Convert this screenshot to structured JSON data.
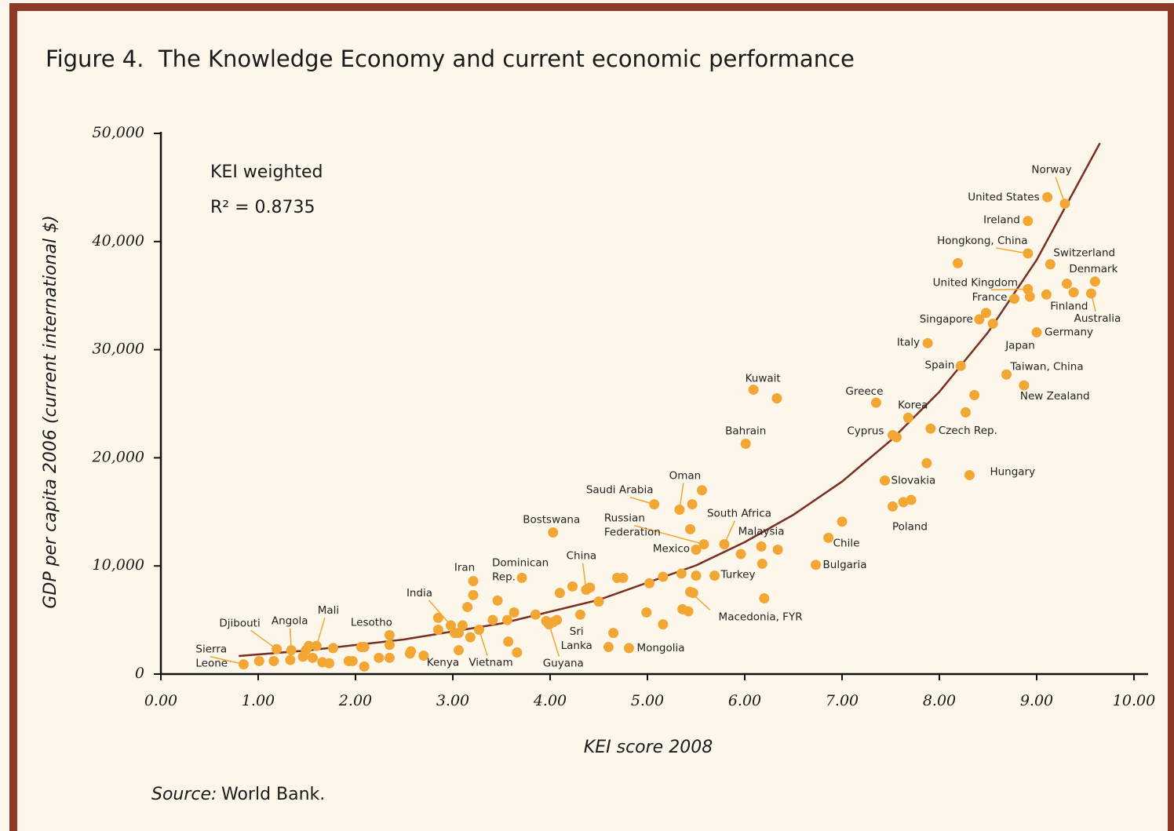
{
  "chart_data": {
    "type": "scatter",
    "title": "Figure 4.  The Knowledge Economy and current economic performance",
    "annotations": [
      "KEI weighted",
      "R² = 0.8735"
    ],
    "x_label": "KEI score 2008",
    "y_label": "GDP per capita 2006 (current international $)",
    "source_prefix": "Source:",
    "source": "World Bank.",
    "color": "#f2a633",
    "xlim": [
      0,
      10.15
    ],
    "ylim": [
      0,
      50000
    ],
    "xticks": [
      {
        "value": 0,
        "label": "0.00"
      },
      {
        "value": 1,
        "label": "1.00"
      },
      {
        "value": 2,
        "label": "2.00"
      },
      {
        "value": 3,
        "label": "3.00"
      },
      {
        "value": 4,
        "label": "4.00"
      },
      {
        "value": 5,
        "label": "5.00"
      },
      {
        "value": 6,
        "label": "6.00"
      },
      {
        "value": 7,
        "label": "7.00"
      },
      {
        "value": 8,
        "label": "8.00"
      },
      {
        "value": 9,
        "label": "9.00"
      },
      {
        "value": 10,
        "label": "10.00"
      }
    ],
    "yticks": [
      0,
      {
        "value": 10000,
        "label": "10,000"
      },
      {
        "value": 20000,
        "label": "20,000"
      },
      {
        "value": 30000,
        "label": "30,000"
      },
      {
        "value": 40000,
        "label": "40,000"
      },
      {
        "value": 50000,
        "label": "50,000"
      }
    ],
    "x": [
      9.29,
      9.11,
      8.91,
      8.91,
      9.14,
      9.6,
      8.91,
      8.77,
      9.1,
      9.56,
      8.41,
      8.55,
      9.0,
      7.88,
      8.22,
      8.69,
      8.87,
      7.35,
      7.68,
      7.52,
      7.91,
      8.31,
      7.44,
      7.52,
      6.09,
      6.01,
      5.33,
      5.07,
      5.79,
      5.58,
      5.5,
      6.17,
      6.86,
      6.73,
      5.69,
      5.44,
      4.81,
      4.03,
      4.37,
      3.71,
      3.21,
      2.98,
      4.03,
      3.99,
      3.27,
      3.06,
      2.35,
      1.6,
      1.34,
      1.19,
      0.85,
      8.19,
      8.93,
      9.38,
      9.31,
      8.48,
      8.36,
      8.27,
      7.56,
      7.87,
      7.63,
      7.71,
      6.33,
      5.56,
      5.46,
      5.44,
      6.34,
      5.96,
      6.18,
      7.0,
      5.47,
      5.35,
      5.5,
      5.16,
      5.02,
      4.99,
      5.16,
      5.36,
      5.42,
      6.2,
      4.6,
      4.65,
      4.41,
      4.23,
      4.1,
      4.69,
      4.75,
      4.5,
      4.31,
      3.21,
      3.15,
      2.85,
      2.85,
      3.02,
      3.06,
      3.1,
      3.46,
      3.41,
      3.56,
      3.63,
      3.85,
      3.96,
      4.07,
      3.18,
      3.57,
      3.66,
      2.7,
      2.57,
      2.56,
      2.35,
      2.35,
      2.24,
      2.06,
      2.09,
      2.09,
      1.93,
      1.97,
      1.52,
      1.49,
      1.46,
      1.56,
      1.66,
      1.73,
      1.77,
      1.33,
      1.16,
      1.01
    ],
    "values": [
      43500,
      44100,
      41900,
      38900,
      37900,
      36300,
      35600,
      34700,
      35100,
      35200,
      32800,
      32400,
      31600,
      30600,
      28500,
      27700,
      26700,
      25100,
      23700,
      22100,
      22700,
      18400,
      17900,
      15500,
      26300,
      21300,
      15200,
      15700,
      12000,
      12000,
      11500,
      11800,
      12600,
      10100,
      9100,
      7600,
      2400,
      13100,
      7800,
      8900,
      8600,
      4500,
      4800,
      4600,
      4100,
      2200,
      3600,
      2600,
      2200,
      2300,
      900,
      38000,
      34900,
      35300,
      36100,
      33400,
      25800,
      24200,
      21900,
      19500,
      15900,
      16100,
      25500,
      17000,
      15700,
      13400,
      11500,
      11100,
      10200,
      14100,
      7500,
      9300,
      9100,
      9000,
      8400,
      5700,
      4600,
      6000,
      5800,
      7000,
      2500,
      3800,
      8000,
      8100,
      7500,
      8900,
      8900,
      6700,
      5500,
      7300,
      6200,
      5200,
      4100,
      3800,
      3800,
      4500,
      6800,
      5000,
      5000,
      5700,
      5500,
      4900,
      5000,
      3400,
      3000,
      2000,
      1700,
      2100,
      1900,
      2700,
      1500,
      1500,
      2500,
      2500,
      700,
      1200,
      1200,
      2600,
      2200,
      1600,
      1500,
      1100,
      1000,
      2400,
      1300,
      1200,
      1200
    ],
    "point_labels": [
      "Norway",
      "United States",
      "Ireland",
      "Hongkong, China",
      "Switzerland",
      "Denmark",
      "United Kingdom",
      "France",
      "Finland",
      "Australia",
      "Singapore",
      "Japan",
      "Germany",
      "Italy",
      "Spain",
      "Taiwan, China",
      "New Zealand",
      "Greece",
      "Korea",
      "Cyprus",
      "Czech Rep.",
      "Hungary",
      "Slovakia",
      "Poland",
      "Kuwait",
      "Bahrain",
      "Oman",
      "Saudi Arabia",
      "South Africa",
      [
        "Russian",
        "Federation"
      ],
      "Mexico",
      "Malaysia",
      "Chile",
      "Bulgaria",
      "Turkey",
      "Macedonia, FYR",
      "Mongolia",
      "Bostswana",
      "China",
      [
        "Dominican",
        "Rep."
      ],
      "Iran",
      "India",
      [
        "Sri",
        "Lanka"
      ],
      "Guyana",
      "Vietnam",
      "Kenya",
      "Lesotho",
      "Mali",
      "Angola",
      "Djibouti",
      [
        "Sierra",
        "Leone"
      ],
      null,
      null,
      null,
      null,
      null,
      null,
      null,
      null,
      null,
      null,
      null,
      null,
      null,
      null,
      null,
      null,
      null,
      null,
      null,
      null,
      null,
      null,
      null,
      null,
      null,
      null,
      null,
      null,
      null,
      null,
      null,
      null,
      null,
      null,
      null,
      null,
      null,
      null,
      null,
      null,
      null,
      null,
      null,
      null,
      null,
      null,
      null,
      null,
      null,
      null,
      null,
      null,
      null,
      null,
      null,
      null,
      null,
      null,
      null,
      null,
      null,
      null,
      null,
      null,
      null,
      null,
      null,
      null,
      null,
      null,
      null,
      null,
      null,
      null,
      null,
      null
    ],
    "trendline": {
      "color": "#7b2e22",
      "x": [
        0.8,
        1.5,
        2.5,
        3.5,
        4.5,
        5.5,
        6.0,
        6.5,
        7.0,
        7.5,
        8.0,
        8.5,
        9.0,
        9.65
      ],
      "values": [
        1670,
        2180,
        3200,
        4680,
        6860,
        10050,
        12200,
        14730,
        17800,
        21600,
        26100,
        31600,
        38300,
        49100
      ]
    }
  }
}
